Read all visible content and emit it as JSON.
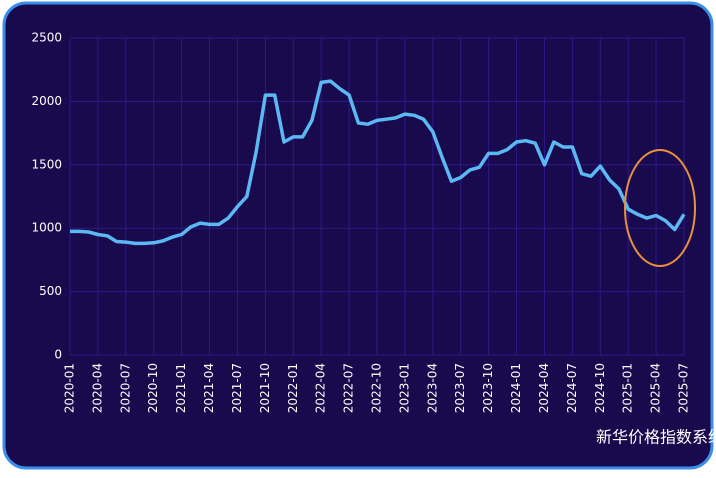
{
  "chart_data": {
    "type": "line",
    "categories": [
      "2020-01",
      null,
      null,
      "2020-04",
      null,
      null,
      "2020-07",
      null,
      null,
      "2020-10",
      null,
      null,
      "2021-01",
      null,
      null,
      "2021-04",
      null,
      null,
      "2021-07",
      null,
      null,
      "2021-10",
      null,
      null,
      "2022-01",
      null,
      null,
      "2022-04",
      null,
      null,
      "2022-07",
      null,
      null,
      "2022-10",
      null,
      null,
      "2023-01",
      null,
      null,
      "2023-04",
      null,
      null,
      "2023-07",
      null,
      null,
      "2023-10",
      null,
      null,
      "2024-01",
      null,
      null,
      "2024-04",
      null,
      null,
      "2024-07",
      null,
      null,
      "2024-10",
      null,
      null,
      "2025-01",
      null,
      null,
      "2025-04",
      null,
      null,
      "2025-07"
    ],
    "values": [
      975,
      975,
      970,
      950,
      940,
      895,
      890,
      880,
      880,
      885,
      900,
      930,
      950,
      1010,
      1040,
      1030,
      1030,
      1080,
      1170,
      1250,
      1600,
      2050,
      2050,
      1680,
      1720,
      1720,
      1850,
      2150,
      2160,
      2100,
      2050,
      1830,
      1820,
      1850,
      1860,
      1870,
      1900,
      1890,
      1860,
      1760,
      1560,
      1370,
      1400,
      1460,
      1480,
      1590,
      1590,
      1620,
      1680,
      1690,
      1670,
      1500,
      1680,
      1640,
      1640,
      1430,
      1410,
      1490,
      1380,
      1310,
      1150,
      1110,
      1080,
      1100,
      1060,
      990,
      1110
    ],
    "color": "#5cb8f2",
    "ylim": [
      0,
      2500
    ],
    "yticks": [
      0,
      500,
      1000,
      1500,
      2000,
      2500
    ],
    "grid": true,
    "watermark": "新华价格指数系统"
  }
}
